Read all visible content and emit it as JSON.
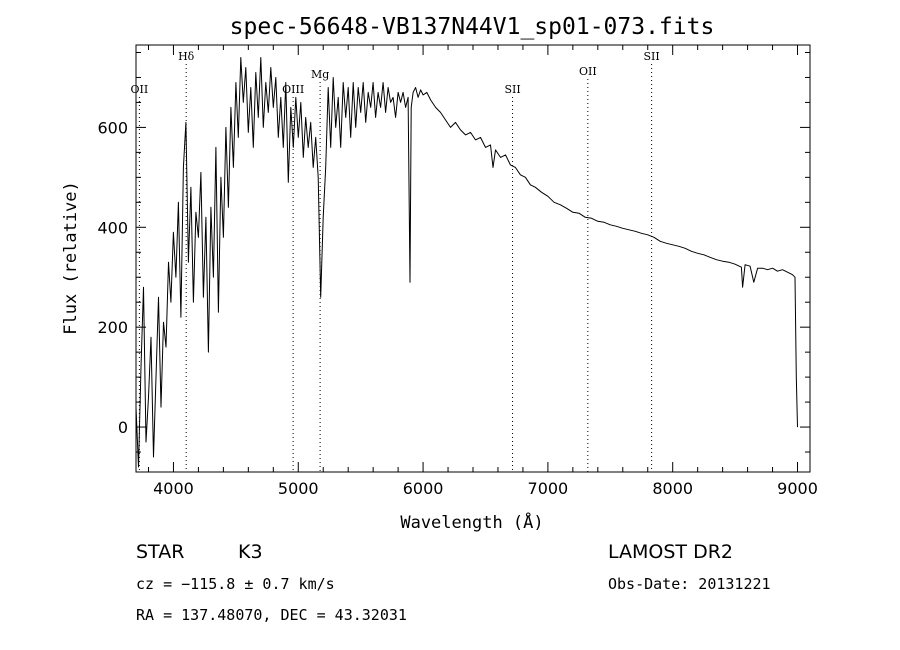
{
  "chart_data": {
    "type": "line",
    "title": "spec-56648-VB137N44V1_sp01-073.fits",
    "xlabel": "Wavelength (Å)",
    "ylabel": "Flux (relative)",
    "xlim": [
      3700,
      9100
    ],
    "ylim": [
      -90,
      765
    ],
    "xticks": [
      4000,
      5000,
      6000,
      7000,
      8000,
      9000
    ],
    "yticks": [
      0,
      200,
      400,
      600
    ],
    "grid": false,
    "series": [
      {
        "color": "#000000",
        "points": [
          [
            3700,
            40
          ],
          [
            3720,
            -80
          ],
          [
            3740,
            120
          ],
          [
            3760,
            280
          ],
          [
            3780,
            -30
          ],
          [
            3800,
            60
          ],
          [
            3820,
            180
          ],
          [
            3840,
            -60
          ],
          [
            3860,
            100
          ],
          [
            3880,
            260
          ],
          [
            3900,
            40
          ],
          [
            3920,
            210
          ],
          [
            3940,
            160
          ],
          [
            3960,
            330
          ],
          [
            3980,
            250
          ],
          [
            4000,
            390
          ],
          [
            4020,
            300
          ],
          [
            4040,
            450
          ],
          [
            4060,
            220
          ],
          [
            4080,
            520
          ],
          [
            4100,
            610
          ],
          [
            4120,
            330
          ],
          [
            4140,
            480
          ],
          [
            4160,
            250
          ],
          [
            4180,
            430
          ],
          [
            4200,
            380
          ],
          [
            4220,
            510
          ],
          [
            4240,
            260
          ],
          [
            4260,
            420
          ],
          [
            4280,
            150
          ],
          [
            4300,
            440
          ],
          [
            4320,
            300
          ],
          [
            4340,
            560
          ],
          [
            4360,
            230
          ],
          [
            4380,
            500
          ],
          [
            4400,
            380
          ],
          [
            4420,
            600
          ],
          [
            4440,
            440
          ],
          [
            4460,
            640
          ],
          [
            4480,
            520
          ],
          [
            4500,
            690
          ],
          [
            4520,
            580
          ],
          [
            4540,
            740
          ],
          [
            4560,
            650
          ],
          [
            4580,
            720
          ],
          [
            4600,
            590
          ],
          [
            4620,
            680
          ],
          [
            4640,
            560
          ],
          [
            4660,
            710
          ],
          [
            4680,
            620
          ],
          [
            4700,
            740
          ],
          [
            4720,
            600
          ],
          [
            4740,
            690
          ],
          [
            4760,
            630
          ],
          [
            4780,
            720
          ],
          [
            4800,
            640
          ],
          [
            4820,
            700
          ],
          [
            4840,
            580
          ],
          [
            4860,
            660
          ],
          [
            4880,
            560
          ],
          [
            4900,
            690
          ],
          [
            4920,
            490
          ],
          [
            4940,
            640
          ],
          [
            4960,
            560
          ],
          [
            4980,
            660
          ],
          [
            5000,
            580
          ],
          [
            5020,
            650
          ],
          [
            5040,
            540
          ],
          [
            5060,
            620
          ],
          [
            5080,
            560
          ],
          [
            5100,
            610
          ],
          [
            5120,
            520
          ],
          [
            5140,
            580
          ],
          [
            5160,
            500
          ],
          [
            5180,
            260
          ],
          [
            5200,
            420
          ],
          [
            5220,
            520
          ],
          [
            5240,
            680
          ],
          [
            5260,
            560
          ],
          [
            5280,
            700
          ],
          [
            5300,
            600
          ],
          [
            5320,
            660
          ],
          [
            5340,
            560
          ],
          [
            5360,
            690
          ],
          [
            5380,
            620
          ],
          [
            5400,
            680
          ],
          [
            5420,
            580
          ],
          [
            5440,
            690
          ],
          [
            5460,
            600
          ],
          [
            5480,
            680
          ],
          [
            5500,
            630
          ],
          [
            5520,
            690
          ],
          [
            5540,
            610
          ],
          [
            5560,
            670
          ],
          [
            5580,
            640
          ],
          [
            5600,
            690
          ],
          [
            5620,
            620
          ],
          [
            5640,
            670
          ],
          [
            5660,
            640
          ],
          [
            5680,
            690
          ],
          [
            5700,
            630
          ],
          [
            5720,
            680
          ],
          [
            5740,
            650
          ],
          [
            5760,
            660
          ],
          [
            5780,
            620
          ],
          [
            5800,
            670
          ],
          [
            5820,
            650
          ],
          [
            5840,
            670
          ],
          [
            5860,
            640
          ],
          [
            5880,
            660
          ],
          [
            5895,
            290
          ],
          [
            5905,
            640
          ],
          [
            5920,
            670
          ],
          [
            5940,
            680
          ],
          [
            5960,
            660
          ],
          [
            5980,
            675
          ],
          [
            6000,
            665
          ],
          [
            6030,
            670
          ],
          [
            6060,
            655
          ],
          [
            6100,
            640
          ],
          [
            6140,
            630
          ],
          [
            6180,
            615
          ],
          [
            6220,
            600
          ],
          [
            6260,
            610
          ],
          [
            6300,
            595
          ],
          [
            6340,
            585
          ],
          [
            6380,
            590
          ],
          [
            6420,
            575
          ],
          [
            6460,
            580
          ],
          [
            6500,
            560
          ],
          [
            6540,
            565
          ],
          [
            6560,
            520
          ],
          [
            6580,
            555
          ],
          [
            6620,
            540
          ],
          [
            6660,
            545
          ],
          [
            6700,
            525
          ],
          [
            6740,
            520
          ],
          [
            6780,
            505
          ],
          [
            6820,
            500
          ],
          [
            6860,
            485
          ],
          [
            6900,
            480
          ],
          [
            6950,
            470
          ],
          [
            7000,
            462
          ],
          [
            7050,
            450
          ],
          [
            7100,
            445
          ],
          [
            7150,
            438
          ],
          [
            7200,
            430
          ],
          [
            7250,
            428
          ],
          [
            7300,
            420
          ],
          [
            7350,
            418
          ],
          [
            7400,
            412
          ],
          [
            7450,
            410
          ],
          [
            7500,
            405
          ],
          [
            7550,
            402
          ],
          [
            7600,
            398
          ],
          [
            7650,
            395
          ],
          [
            7700,
            392
          ],
          [
            7750,
            388
          ],
          [
            7800,
            385
          ],
          [
            7850,
            380
          ],
          [
            7900,
            372
          ],
          [
            7950,
            368
          ],
          [
            8000,
            365
          ],
          [
            8050,
            362
          ],
          [
            8100,
            358
          ],
          [
            8150,
            352
          ],
          [
            8200,
            348
          ],
          [
            8250,
            345
          ],
          [
            8300,
            340
          ],
          [
            8350,
            335
          ],
          [
            8400,
            332
          ],
          [
            8450,
            330
          ],
          [
            8500,
            326
          ],
          [
            8550,
            320
          ],
          [
            8560,
            280
          ],
          [
            8580,
            325
          ],
          [
            8620,
            322
          ],
          [
            8650,
            290
          ],
          [
            8680,
            318
          ],
          [
            8720,
            318
          ],
          [
            8760,
            315
          ],
          [
            8800,
            318
          ],
          [
            8840,
            312
          ],
          [
            8880,
            315
          ],
          [
            8920,
            310
          ],
          [
            8960,
            305
          ],
          [
            8980,
            300
          ],
          [
            8990,
            100
          ],
          [
            9000,
            0
          ]
        ]
      }
    ],
    "line_markers": [
      {
        "label": "OII",
        "x": 3727
      },
      {
        "label": "Hδ",
        "x": 4102
      },
      {
        "label": "OIII",
        "x": 4959
      },
      {
        "label": "Mg",
        "x": 5175
      },
      {
        "label": "SII",
        "x": 6717
      },
      {
        "label": "OII",
        "x": 7320
      },
      {
        "label": "SII",
        "x": 7831
      }
    ]
  },
  "info": {
    "object_class": "STAR",
    "subclass": "K3",
    "cz": "cz = −115.8 ± 0.7 km/s",
    "coords": "RA = 137.48070, DEC =  43.32031",
    "survey": "LAMOST DR2",
    "obs_date": "Obs-Date: 20131221"
  }
}
